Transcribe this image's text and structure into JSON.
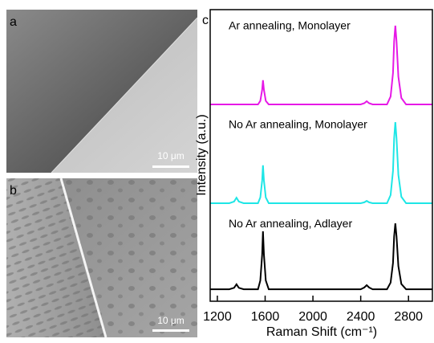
{
  "panels": [
    {
      "label": "a",
      "scale_bar": "10 μm"
    },
    {
      "label": "b",
      "scale_bar": "10 μm"
    }
  ],
  "chart_data": {
    "type": "line",
    "panel_label": "c",
    "x_label": "Raman Shift (cm⁻¹)",
    "y_label": "Intensity (a.u.)",
    "xlim": [
      1140,
      3000
    ],
    "xticks": [
      1200,
      1600,
      2000,
      2400,
      2800
    ],
    "ylim": [
      0,
      10
    ],
    "x": [
      1140,
      1300,
      1340,
      1360,
      1380,
      1420,
      1540,
      1560,
      1575,
      1582,
      1590,
      1605,
      1630,
      2400,
      2430,
      2450,
      2470,
      2500,
      2620,
      2650,
      2670,
      2680,
      2690,
      2700,
      2715,
      2740,
      2780,
      3000
    ],
    "series": [
      {
        "name": "Ar annealing, Monolayer",
        "color": "#e619e6",
        "values": [
          6.75,
          6.75,
          6.75,
          6.75,
          6.75,
          6.75,
          6.75,
          6.87,
          7.25,
          7.58,
          7.25,
          6.87,
          6.75,
          6.75,
          6.79,
          6.86,
          6.79,
          6.75,
          6.75,
          7.02,
          7.83,
          8.91,
          9.45,
          8.91,
          7.7,
          6.97,
          6.75,
          6.75
        ]
      },
      {
        "name": "No Ar annealing, Monolayer",
        "color": "#1ee6e6",
        "values": [
          3.36,
          3.36,
          3.42,
          3.55,
          3.42,
          3.36,
          3.36,
          3.56,
          4.14,
          4.66,
          4.14,
          3.56,
          3.36,
          3.36,
          3.39,
          3.44,
          3.39,
          3.36,
          3.36,
          3.64,
          4.47,
          5.58,
          6.14,
          5.58,
          4.33,
          3.58,
          3.36,
          3.36
        ]
      },
      {
        "name": "No Ar annealing, Adlayer",
        "color": "#000000",
        "values": [
          0.41,
          0.41,
          0.46,
          0.58,
          0.46,
          0.41,
          0.41,
          0.71,
          1.6,
          2.4,
          1.6,
          0.71,
          0.41,
          0.41,
          0.47,
          0.55,
          0.47,
          0.41,
          0.41,
          0.64,
          1.31,
          2.22,
          2.67,
          2.22,
          1.2,
          0.59,
          0.41,
          0.41
        ]
      }
    ]
  }
}
